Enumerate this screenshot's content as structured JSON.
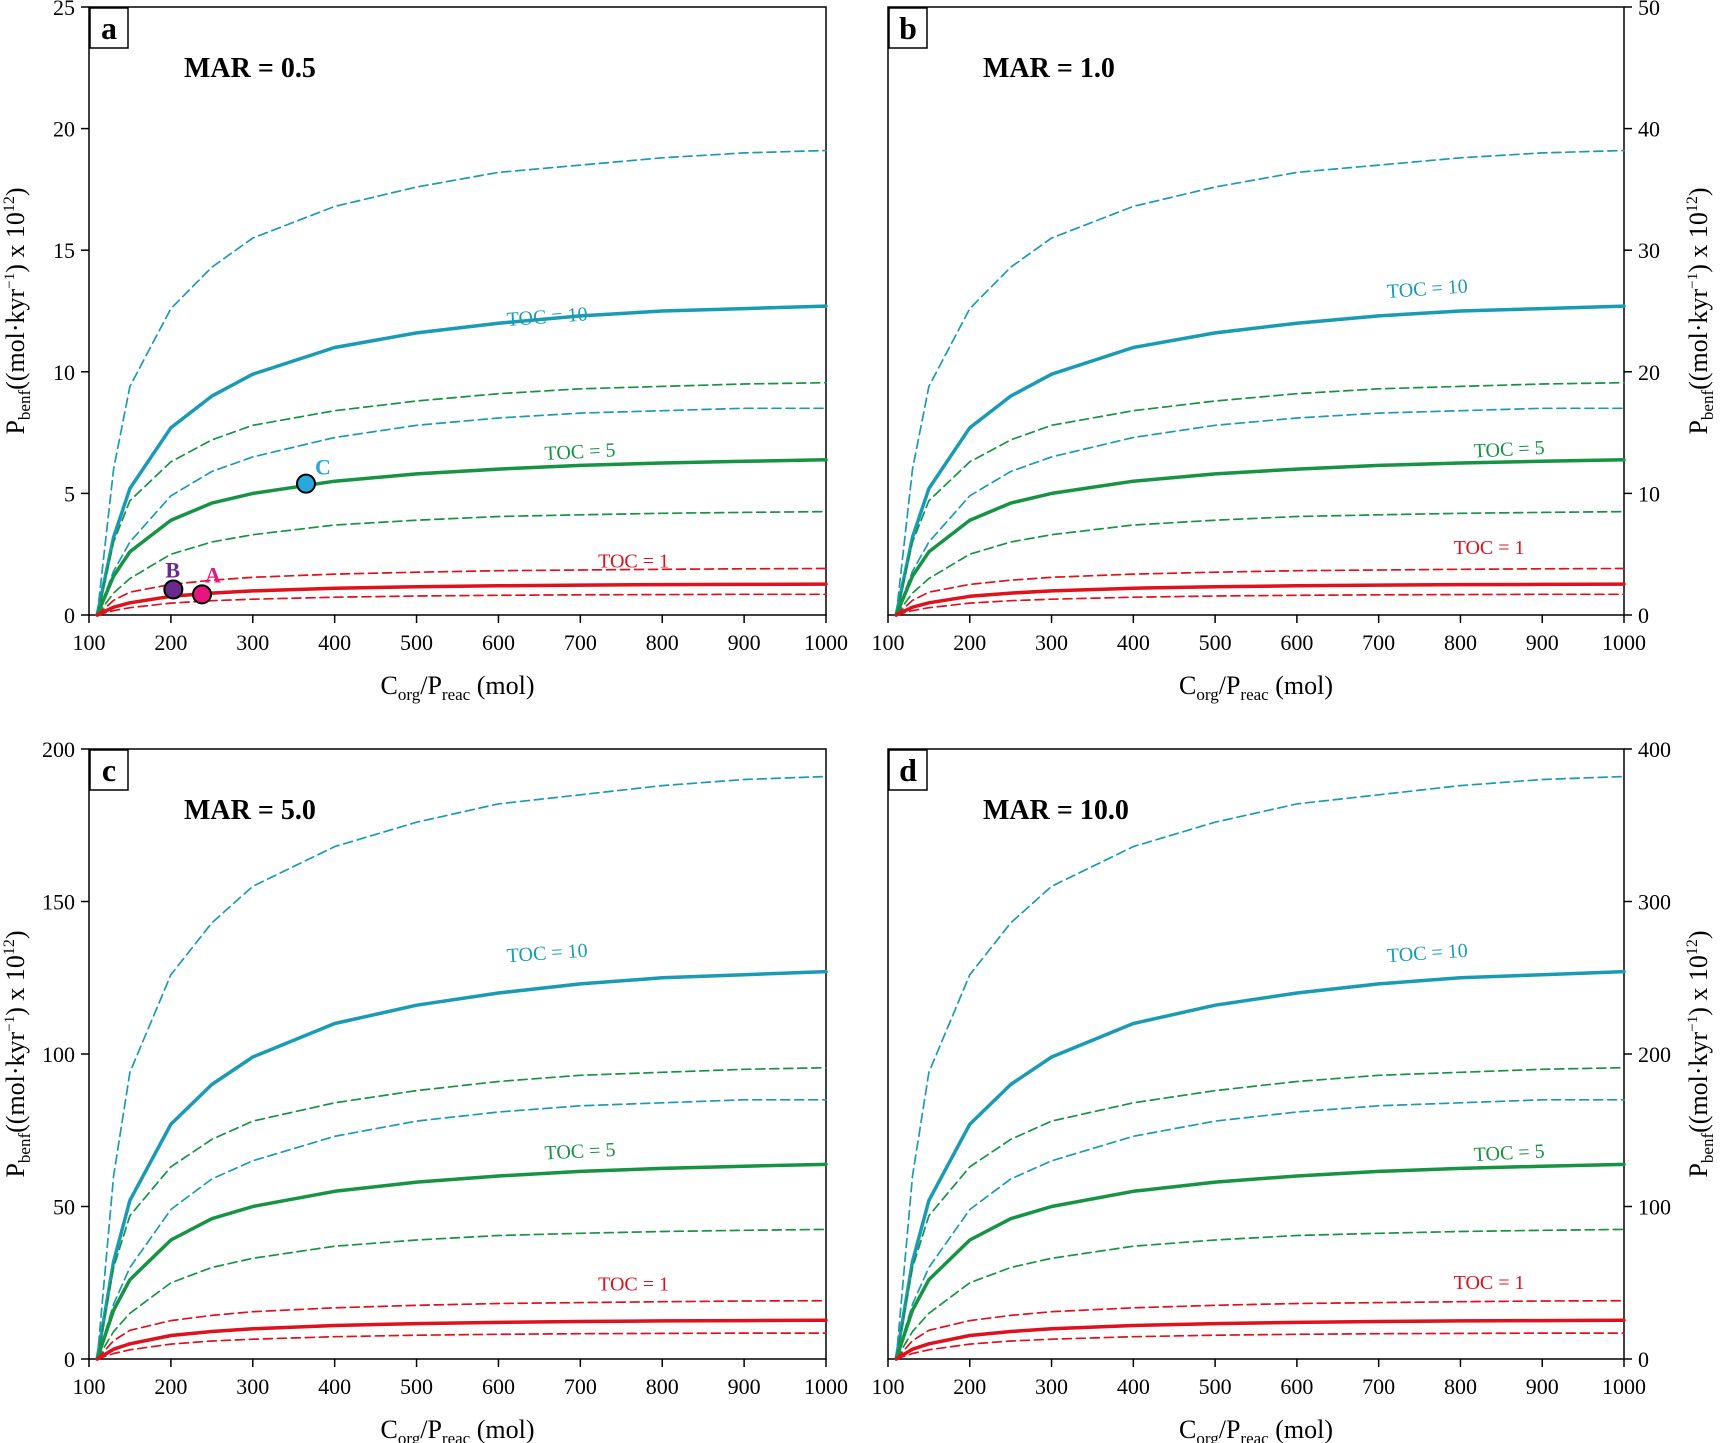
{
  "chart_data": [
    {
      "type": "line",
      "panel_letter": "a",
      "title": "MAR = 0.5",
      "xlabel": {
        "main": "C",
        "sub1": "org",
        "mid": "/P",
        "sub2": "reac",
        "tail": " (mol)"
      },
      "ylabel": {
        "main": "P",
        "sub": "benf",
        "mid": "((mol·kyr",
        "sup1": "−1",
        "mid2": ") x 10",
        "sup2": "12",
        "tail": ")"
      },
      "y_axis_side": "left",
      "xlim": [
        100,
        1000
      ],
      "ylim": [
        0,
        25
      ],
      "xticks": [
        100,
        200,
        300,
        400,
        500,
        600,
        700,
        800,
        900,
        1000
      ],
      "yticks": [
        0,
        5,
        10,
        15,
        20,
        25
      ],
      "x": [
        110,
        130,
        150,
        200,
        250,
        300,
        400,
        500,
        600,
        700,
        800,
        900,
        1000
      ],
      "series": [
        {
          "name": "TOC = 10",
          "style": "solid",
          "color": "#1a9bb5",
          "label": "TOC = 10",
          "label_at": [
            660,
            12.0
          ],
          "label_angle": -4,
          "values": [
            0.0,
            3.2,
            5.2,
            7.7,
            9.0,
            9.9,
            11.0,
            11.6,
            12.0,
            12.3,
            12.5,
            12.6,
            12.7
          ]
        },
        {
          "name": "TOC = 10 upper",
          "style": "dashed",
          "color": "#1a9bb5",
          "values": [
            0.0,
            6.0,
            9.4,
            12.6,
            14.3,
            15.5,
            16.8,
            17.6,
            18.2,
            18.5,
            18.8,
            19.0,
            19.1
          ]
        },
        {
          "name": "TOC = 10 lower",
          "style": "dashed",
          "color": "#1a9bb5",
          "values": [
            0.0,
            1.8,
            3.0,
            4.9,
            5.9,
            6.5,
            7.3,
            7.8,
            8.1,
            8.3,
            8.4,
            8.5,
            8.5
          ]
        },
        {
          "name": "TOC = 5",
          "style": "solid",
          "color": "#169343",
          "label": "TOC = 5",
          "label_at": [
            700,
            6.45
          ],
          "label_angle": -3,
          "values": [
            0.0,
            1.6,
            2.6,
            3.9,
            4.6,
            5.0,
            5.5,
            5.8,
            6.0,
            6.15,
            6.25,
            6.32,
            6.38
          ]
        },
        {
          "name": "TOC = 5 upper",
          "style": "dashed",
          "color": "#169343",
          "values": [
            0.0,
            3.0,
            4.7,
            6.3,
            7.2,
            7.8,
            8.4,
            8.8,
            9.1,
            9.3,
            9.4,
            9.5,
            9.55
          ]
        },
        {
          "name": "TOC = 5 lower",
          "style": "dashed",
          "color": "#169343",
          "values": [
            0.0,
            0.9,
            1.5,
            2.5,
            3.0,
            3.3,
            3.7,
            3.9,
            4.05,
            4.12,
            4.18,
            4.22,
            4.25
          ]
        },
        {
          "name": "TOC = 1",
          "style": "solid",
          "color": "#e0101c",
          "label": "TOC = 1",
          "label_at": [
            765,
            1.95
          ],
          "label_angle": 0,
          "values": [
            0.0,
            0.32,
            0.5,
            0.77,
            0.9,
            0.99,
            1.1,
            1.16,
            1.2,
            1.23,
            1.25,
            1.26,
            1.27
          ]
        },
        {
          "name": "TOC = 1 upper",
          "style": "dashed",
          "color": "#e0101c",
          "values": [
            0.0,
            0.6,
            0.94,
            1.26,
            1.43,
            1.55,
            1.68,
            1.76,
            1.82,
            1.85,
            1.88,
            1.9,
            1.91
          ]
        },
        {
          "name": "TOC = 1 lower",
          "style": "dashed",
          "color": "#e0101c",
          "values": [
            0.0,
            0.18,
            0.3,
            0.49,
            0.59,
            0.65,
            0.73,
            0.78,
            0.81,
            0.83,
            0.84,
            0.85,
            0.85
          ]
        }
      ],
      "points": [
        {
          "label": "A",
          "x": 238,
          "y": 0.85,
          "fill": "#e8157e",
          "color": "#e8157e"
        },
        {
          "label": "B",
          "x": 203,
          "y": 1.05,
          "fill": "#6a2a8c",
          "color": "#6a2a8c"
        },
        {
          "label": "C",
          "x": 365,
          "y": 5.4,
          "fill": "#29a8e0",
          "color": "#29a8e0"
        }
      ]
    },
    {
      "type": "line",
      "panel_letter": "b",
      "title": "MAR = 1.0",
      "xlabel": {
        "main": "C",
        "sub1": "org",
        "mid": "/P",
        "sub2": "reac",
        "tail": " (mol)"
      },
      "ylabel": {
        "main": "P",
        "sub": "benf",
        "mid": "((mol·kyr",
        "sup1": "−1",
        "mid2": ") x 10",
        "sup2": "12",
        "tail": ")"
      },
      "y_axis_side": "right",
      "xlim": [
        100,
        1000
      ],
      "ylim": [
        0,
        50
      ],
      "xticks": [
        100,
        200,
        300,
        400,
        500,
        600,
        700,
        800,
        900,
        1000
      ],
      "yticks": [
        0,
        10,
        20,
        30,
        40,
        50
      ],
      "x": [
        110,
        130,
        150,
        200,
        250,
        300,
        400,
        500,
        600,
        700,
        800,
        900,
        1000
      ],
      "series": [
        {
          "name": "TOC = 10",
          "style": "solid",
          "color": "#1a9bb5",
          "label": "TOC = 10",
          "label_at": [
            760,
            26.3
          ],
          "label_angle": -4,
          "values": [
            0.0,
            6.4,
            10.4,
            15.4,
            18.0,
            19.8,
            22.0,
            23.2,
            24.0,
            24.6,
            25.0,
            25.2,
            25.4
          ]
        },
        {
          "name": "TOC = 10 upper",
          "style": "dashed",
          "color": "#1a9bb5",
          "values": [
            0.0,
            12.0,
            18.8,
            25.2,
            28.6,
            31.0,
            33.6,
            35.2,
            36.4,
            37.0,
            37.6,
            38.0,
            38.2
          ]
        },
        {
          "name": "TOC = 10 lower",
          "style": "dashed",
          "color": "#1a9bb5",
          "values": [
            0.0,
            3.6,
            6.0,
            9.8,
            11.8,
            13.0,
            14.6,
            15.6,
            16.2,
            16.6,
            16.8,
            17.0,
            17.0
          ]
        },
        {
          "name": "TOC = 5",
          "style": "solid",
          "color": "#169343",
          "label": "TOC = 5",
          "label_at": [
            860,
            13.1
          ],
          "label_angle": -3,
          "values": [
            0.0,
            3.2,
            5.2,
            7.8,
            9.2,
            10.0,
            11.0,
            11.6,
            12.0,
            12.3,
            12.5,
            12.64,
            12.76
          ]
        },
        {
          "name": "TOC = 5 upper",
          "style": "dashed",
          "color": "#169343",
          "values": [
            0.0,
            6.0,
            9.4,
            12.6,
            14.4,
            15.6,
            16.8,
            17.6,
            18.2,
            18.6,
            18.8,
            19.0,
            19.1
          ]
        },
        {
          "name": "TOC = 5 lower",
          "style": "dashed",
          "color": "#169343",
          "values": [
            0.0,
            1.8,
            3.0,
            5.0,
            6.0,
            6.6,
            7.4,
            7.8,
            8.1,
            8.24,
            8.36,
            8.44,
            8.5
          ]
        },
        {
          "name": "TOC = 1",
          "style": "solid",
          "color": "#e0101c",
          "label": "TOC = 1",
          "label_at": [
            835,
            5.0
          ],
          "label_angle": 0,
          "values": [
            0.0,
            0.64,
            1.0,
            1.54,
            1.8,
            1.98,
            2.2,
            2.32,
            2.4,
            2.46,
            2.5,
            2.52,
            2.54
          ]
        },
        {
          "name": "TOC = 1 upper",
          "style": "dashed",
          "color": "#e0101c",
          "values": [
            0.0,
            1.2,
            1.88,
            2.52,
            2.86,
            3.1,
            3.36,
            3.52,
            3.64,
            3.7,
            3.76,
            3.8,
            3.82
          ]
        },
        {
          "name": "TOC = 1 lower",
          "style": "dashed",
          "color": "#e0101c",
          "values": [
            0.0,
            0.36,
            0.6,
            0.98,
            1.18,
            1.3,
            1.46,
            1.56,
            1.62,
            1.66,
            1.68,
            1.7,
            1.7
          ]
        }
      ],
      "points": []
    },
    {
      "type": "line",
      "panel_letter": "c",
      "title": "MAR = 5.0",
      "xlabel": {
        "main": "C",
        "sub1": "org",
        "mid": "/P",
        "sub2": "reac",
        "tail": " (mol)"
      },
      "ylabel": {
        "main": "P",
        "sub": "benf",
        "mid": "((mol·kyr",
        "sup1": "−1",
        "mid2": ") x 10",
        "sup2": "12",
        "tail": ")"
      },
      "y_axis_side": "left",
      "xlim": [
        100,
        1000
      ],
      "ylim": [
        0,
        200
      ],
      "xticks": [
        100,
        200,
        300,
        400,
        500,
        600,
        700,
        800,
        900,
        1000
      ],
      "yticks": [
        0,
        50,
        100,
        150,
        200
      ],
      "x": [
        110,
        130,
        150,
        200,
        250,
        300,
        400,
        500,
        600,
        700,
        800,
        900,
        1000
      ],
      "series": [
        {
          "name": "TOC = 10",
          "style": "solid",
          "color": "#1a9bb5",
          "label": "TOC = 10",
          "label_at": [
            660,
            131
          ],
          "label_angle": -4,
          "values": [
            0.0,
            32,
            52,
            77,
            90,
            99,
            110,
            116,
            120,
            123,
            125,
            126,
            127
          ]
        },
        {
          "name": "TOC = 10 upper",
          "style": "dashed",
          "color": "#1a9bb5",
          "values": [
            0.0,
            60,
            94,
            126,
            143,
            155,
            168,
            176,
            182,
            185,
            188,
            190,
            191
          ]
        },
        {
          "name": "TOC = 10 lower",
          "style": "dashed",
          "color": "#1a9bb5",
          "values": [
            0.0,
            18,
            30,
            49,
            59,
            65,
            73,
            78,
            81,
            83,
            84,
            85,
            85
          ]
        },
        {
          "name": "TOC = 5",
          "style": "solid",
          "color": "#169343",
          "label": "TOC = 5",
          "label_at": [
            700,
            66
          ],
          "label_angle": -3,
          "values": [
            0.0,
            16,
            26,
            39,
            46,
            50,
            55,
            58,
            60,
            61.5,
            62.5,
            63.2,
            63.8
          ]
        },
        {
          "name": "TOC = 5 upper",
          "style": "dashed",
          "color": "#169343",
          "values": [
            0.0,
            30,
            47,
            63,
            72,
            78,
            84,
            88,
            91,
            93,
            94,
            95,
            95.5
          ]
        },
        {
          "name": "TOC = 5 lower",
          "style": "dashed",
          "color": "#169343",
          "values": [
            0.0,
            9,
            15,
            25,
            30,
            33,
            37,
            39,
            40.5,
            41.2,
            41.8,
            42.2,
            42.5
          ]
        },
        {
          "name": "TOC = 1",
          "style": "solid",
          "color": "#e0101c",
          "label": "TOC = 1",
          "label_at": [
            765,
            22.5
          ],
          "label_angle": 0,
          "values": [
            0.0,
            3.2,
            5.0,
            7.7,
            9.0,
            9.9,
            11.0,
            11.6,
            12.0,
            12.3,
            12.5,
            12.6,
            12.7
          ]
        },
        {
          "name": "TOC = 1 upper",
          "style": "dashed",
          "color": "#e0101c",
          "values": [
            0.0,
            6.0,
            9.4,
            12.6,
            14.3,
            15.5,
            16.8,
            17.6,
            18.2,
            18.5,
            18.8,
            19.0,
            19.1
          ]
        },
        {
          "name": "TOC = 1 lower",
          "style": "dashed",
          "color": "#e0101c",
          "values": [
            0.0,
            1.8,
            3.0,
            4.9,
            5.9,
            6.5,
            7.3,
            7.8,
            8.1,
            8.3,
            8.4,
            8.5,
            8.5
          ]
        }
      ],
      "points": []
    },
    {
      "type": "line",
      "panel_letter": "d",
      "title": "MAR = 10.0",
      "xlabel": {
        "main": "C",
        "sub1": "org",
        "mid": "/P",
        "sub2": "reac",
        "tail": " (mol)"
      },
      "ylabel": {
        "main": "P",
        "sub": "benf",
        "mid": "((mol·kyr",
        "sup1": "−1",
        "mid2": ") x 10",
        "sup2": "12",
        "tail": ")"
      },
      "y_axis_side": "right",
      "xlim": [
        100,
        1000
      ],
      "ylim": [
        0,
        400
      ],
      "xticks": [
        100,
        200,
        300,
        400,
        500,
        600,
        700,
        800,
        900,
        1000
      ],
      "yticks": [
        0,
        100,
        200,
        300,
        400
      ],
      "x": [
        110,
        130,
        150,
        200,
        250,
        300,
        400,
        500,
        600,
        700,
        800,
        900,
        1000
      ],
      "series": [
        {
          "name": "TOC = 10",
          "style": "solid",
          "color": "#1a9bb5",
          "label": "TOC = 10",
          "label_at": [
            760,
            262
          ],
          "label_angle": -4,
          "values": [
            0.0,
            64,
            104,
            154,
            180,
            198,
            220,
            232,
            240,
            246,
            250,
            252,
            254
          ]
        },
        {
          "name": "TOC = 10 upper",
          "style": "dashed",
          "color": "#1a9bb5",
          "values": [
            0.0,
            120,
            188,
            252,
            286,
            310,
            336,
            352,
            364,
            370,
            376,
            380,
            382
          ]
        },
        {
          "name": "TOC = 10 lower",
          "style": "dashed",
          "color": "#1a9bb5",
          "values": [
            0.0,
            36,
            60,
            98,
            118,
            130,
            146,
            156,
            162,
            166,
            168,
            170,
            170
          ]
        },
        {
          "name": "TOC = 5",
          "style": "solid",
          "color": "#169343",
          "label": "TOC = 5",
          "label_at": [
            860,
            131
          ],
          "label_angle": -3,
          "values": [
            0.0,
            32,
            52,
            78,
            92,
            100,
            110,
            116,
            120,
            123,
            125,
            126.4,
            127.6
          ]
        },
        {
          "name": "TOC = 5 upper",
          "style": "dashed",
          "color": "#169343",
          "values": [
            0.0,
            60,
            94,
            126,
            144,
            156,
            168,
            176,
            182,
            186,
            188,
            190,
            191
          ]
        },
        {
          "name": "TOC = 5 lower",
          "style": "dashed",
          "color": "#169343",
          "values": [
            0.0,
            18,
            30,
            50,
            60,
            66,
            74,
            78,
            81,
            82.4,
            83.6,
            84.4,
            85
          ]
        },
        {
          "name": "TOC = 1",
          "style": "solid",
          "color": "#e0101c",
          "label": "TOC = 1",
          "label_at": [
            835,
            46
          ],
          "label_angle": 0,
          "values": [
            0.0,
            6.4,
            10,
            15.4,
            18,
            19.8,
            22,
            23.2,
            24,
            24.6,
            25,
            25.2,
            25.4
          ]
        },
        {
          "name": "TOC = 1 upper",
          "style": "dashed",
          "color": "#e0101c",
          "values": [
            0.0,
            12,
            18.8,
            25.2,
            28.6,
            31,
            33.6,
            35.2,
            36.4,
            37,
            37.6,
            38,
            38.2
          ]
        },
        {
          "name": "TOC = 1 lower",
          "style": "dashed",
          "color": "#e0101c",
          "values": [
            0.0,
            3.6,
            6.0,
            9.8,
            11.8,
            13,
            14.6,
            15.6,
            16.2,
            16.6,
            16.8,
            17,
            17
          ]
        }
      ],
      "points": []
    }
  ]
}
